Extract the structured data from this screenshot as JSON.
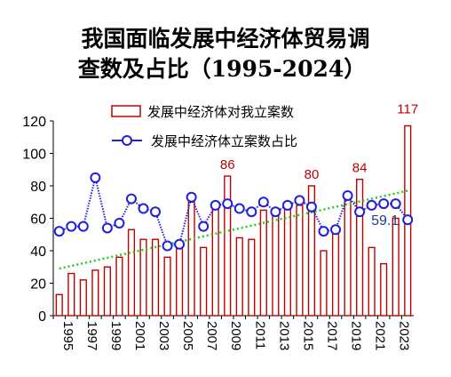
{
  "chart_data": {
    "type": "bar",
    "title_line1": "我国面临发展中经济体贸易调",
    "title_line2": "查数及占比（1995-2024）",
    "x": [
      1995,
      1996,
      1997,
      1998,
      1999,
      2000,
      2001,
      2002,
      2003,
      2004,
      2005,
      2006,
      2007,
      2008,
      2009,
      2010,
      2011,
      2012,
      2013,
      2014,
      2015,
      2016,
      2017,
      2018,
      2019,
      2020,
      2021,
      2022,
      2023,
      2024
    ],
    "x_tick_labels": [
      "1995",
      "1997",
      "1999",
      "2001",
      "2003",
      "2005",
      "2007",
      "2009",
      "2011",
      "2013",
      "2015",
      "2017",
      "2019",
      "2021",
      "2023"
    ],
    "y_tick_labels": [
      "0",
      "20",
      "40",
      "60",
      "80",
      "100",
      "120"
    ],
    "ylim": [
      0,
      120
    ],
    "series": [
      {
        "name": "发展中经济体对我立案数",
        "kind": "bar",
        "color": "#c00000",
        "values": [
          13,
          26,
          22,
          28,
          30,
          36,
          53,
          47,
          47,
          36,
          45,
          70,
          42,
          70,
          86,
          48,
          47,
          65,
          62,
          66,
          68,
          80,
          40,
          53,
          73,
          84,
          42,
          32,
          60,
          117
        ]
      },
      {
        "name": "发展中经济体立案数占比",
        "kind": "line",
        "color": "#1f1fdf",
        "values": [
          52,
          55,
          55,
          85,
          54,
          57,
          72,
          66,
          64,
          43,
          44,
          73,
          55,
          68,
          69,
          66,
          64,
          70,
          64,
          68,
          71,
          67,
          52,
          53,
          74,
          64,
          68,
          69,
          69,
          59.1
        ]
      }
    ],
    "trend_line": {
      "color": "#22cc22",
      "start": 29,
      "end": 77
    },
    "data_labels": [
      {
        "year": 2009,
        "text": "86",
        "series": 0
      },
      {
        "year": 2016,
        "text": "80",
        "series": 0
      },
      {
        "year": 2020,
        "text": "84",
        "series": 0
      },
      {
        "year": 2024,
        "text": "117",
        "series": 0
      },
      {
        "year": 2024,
        "text": "59.1",
        "series": 1
      }
    ],
    "legend_position": "top-center",
    "grid": false
  }
}
